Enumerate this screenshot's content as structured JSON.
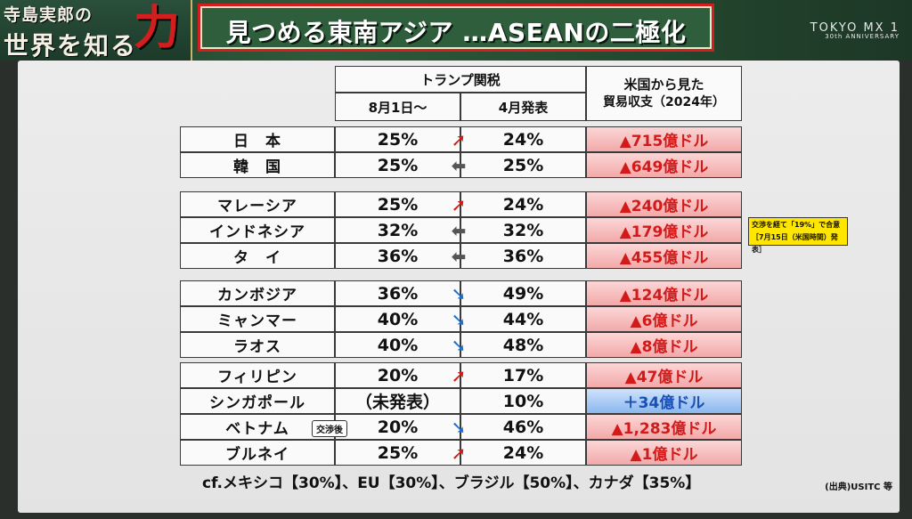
{
  "banner": {
    "logo_line1": "寺島実郎の",
    "logo_line2": "世界を知る",
    "logo_accent": "力",
    "title": "見つめる東南アジア …ASEANの二極化",
    "station": "TOKYO MX 1",
    "station_sub": "30th ANNIVERSARY"
  },
  "table": {
    "header_tariff": "トランプ関税",
    "header_aug": "8月1日〜",
    "header_apr": "4月発表",
    "header_trade_line1": "米国から見た",
    "header_trade_line2": "貿易収支（2024年）",
    "rows": [
      {
        "name": "日　本",
        "aug": "25%",
        "apr": "24%",
        "trade": "▲715億ドル",
        "arrow": "up",
        "positive": false
      },
      {
        "name": "韓　国",
        "aug": "25%",
        "apr": "25%",
        "trade": "▲649億ドル",
        "arrow": "same",
        "positive": false
      },
      {
        "name": "マレーシア",
        "aug": "25%",
        "apr": "24%",
        "trade": "▲240億ドル",
        "arrow": "up",
        "positive": false
      },
      {
        "name": "インドネシア",
        "aug": "32%",
        "apr": "32%",
        "trade": "▲179億ドル",
        "arrow": "same",
        "positive": false
      },
      {
        "name": "タ　イ",
        "aug": "36%",
        "apr": "36%",
        "trade": "▲455億ドル",
        "arrow": "same",
        "positive": false
      },
      {
        "name": "カンボジア",
        "aug": "36%",
        "apr": "49%",
        "trade": "▲124億ドル",
        "arrow": "down",
        "positive": false
      },
      {
        "name": "ミャンマー",
        "aug": "40%",
        "apr": "44%",
        "trade": "▲6億ドル",
        "arrow": "down",
        "positive": false
      },
      {
        "name": "ラオス",
        "aug": "40%",
        "apr": "48%",
        "trade": "▲8億ドル",
        "arrow": "down",
        "positive": false
      },
      {
        "name": "フィリピン",
        "aug": "20%",
        "apr": "17%",
        "trade": "▲47億ドル",
        "arrow": "up",
        "positive": false
      },
      {
        "name": "シンガポール",
        "aug": "（未発表）",
        "apr": "10%",
        "trade": "＋34億ドル",
        "arrow": "none",
        "positive": true
      },
      {
        "name": "ベトナム",
        "aug": "20%",
        "apr": "46%",
        "trade": "▲1,283億ドル",
        "arrow": "down",
        "positive": false,
        "badge": "交渉後"
      },
      {
        "name": "ブルネイ",
        "aug": "25%",
        "apr": "24%",
        "trade": "▲1億ドル",
        "arrow": "up",
        "positive": false
      }
    ]
  },
  "note": {
    "line1": "交渉を経て「19%」で合意",
    "line2": "［7月15日（米国時間）発表］"
  },
  "footer": "cf.メキシコ【30%】、EU【30%】、ブラジル【50%】、カナダ【35%】",
  "source": "(出典)USITC 等",
  "colors": {
    "up_arrow": "#d31a1a",
    "same_arrow": "#555555",
    "down_arrow": "#1a6fd6",
    "deficit_text": "#d31a1a",
    "surplus_text": "#1a4fb5"
  }
}
